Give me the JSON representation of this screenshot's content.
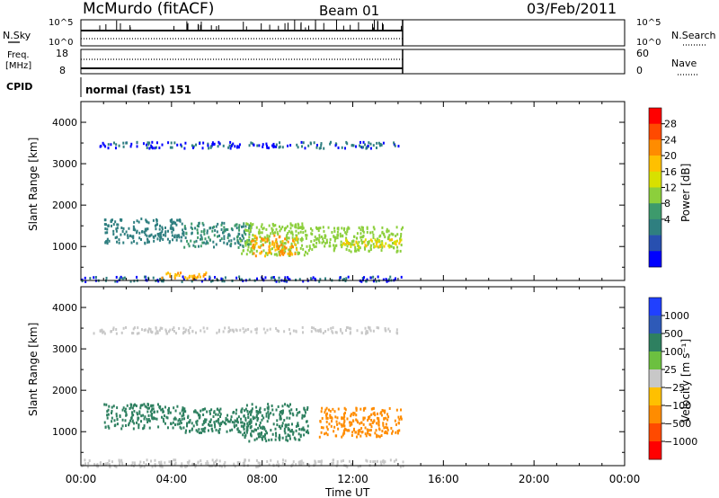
{
  "header": {
    "title": "McMurdo (fitACF)",
    "beam": "Beam 01",
    "date": "03/Feb/2011"
  },
  "nsky_panel": {
    "left_label": "N.Sky",
    "left_ticks": [
      "10^5",
      "10^0"
    ],
    "right_ticks": [
      "10^5",
      "10^0"
    ],
    "right_label": "N.Search"
  },
  "freq_panel": {
    "left_label_line1": "Freq.",
    "left_label_line2": "[MHz]",
    "left_ticks": [
      "18",
      "8"
    ],
    "right_ticks": [
      "60",
      "0"
    ],
    "right_label": "Nave"
  },
  "cpid_panel": {
    "label": "CPID",
    "value": "normal (fast) 151"
  },
  "x_axis": {
    "label": "Time UT",
    "ticks": [
      "00:00",
      "04:00",
      "08:00",
      "12:00",
      "16:00",
      "20:00",
      "00:00"
    ]
  },
  "y_axis": {
    "label": "Slant Range [km]",
    "ticks": [
      "4000",
      "3000",
      "2000",
      "1000"
    ]
  },
  "power_colorbar": {
    "label": "Power [dB]",
    "ticks": [
      "28",
      "24",
      "20",
      "16",
      "12",
      "8",
      "4"
    ],
    "colors": [
      "#ff0000",
      "#ff4a00",
      "#ff8c00",
      "#ffc000",
      "#d8e000",
      "#8ccf3c",
      "#3d9a6c",
      "#2f7f80",
      "#2850b0",
      "#0000ff"
    ]
  },
  "velocity_colorbar": {
    "label": "Velocity [m s⁻¹]",
    "ticks": [
      "1000",
      "500",
      "100",
      "25",
      "−25",
      "−100",
      "−500",
      "−1000"
    ],
    "colors": [
      "#2040ff",
      "#2e5ab8",
      "#2e8060",
      "#6cc040",
      "#c8c8c8",
      "#ffc000",
      "#ff8c00",
      "#ff4a00",
      "#ff0000"
    ]
  },
  "chart_data": [
    {
      "type": "line",
      "title": "N.Sky / N.Search",
      "x": [
        "00:00",
        "04:00",
        "08:00",
        "12:00",
        "14:15"
      ],
      "series": [
        {
          "name": "N.Sky",
          "values": [
            3,
            3,
            3,
            3,
            3
          ]
        },
        {
          "name": "N.Search",
          "values": [
            1,
            1,
            1,
            1,
            1
          ]
        }
      ],
      "ylim": [
        0,
        5
      ]
    },
    {
      "type": "line",
      "title": "Freq. / Nave",
      "x": [
        "00:00",
        "04:00",
        "08:00",
        "12:00",
        "14:15"
      ],
      "series": [
        {
          "name": "Freq.",
          "values": [
            10,
            10,
            10,
            10,
            10
          ]
        },
        {
          "name": "Nave",
          "values": [
            40,
            40,
            40,
            40,
            40
          ]
        }
      ],
      "ylim": [
        8,
        18
      ]
    },
    {
      "type": "heatmap",
      "title": "",
      "xlabel": "Time UT",
      "ylabel": "Slant Range [km]",
      "xlim": [
        0,
        24
      ],
      "ylim": [
        180,
        4500
      ],
      "colorbar": "Power [dB]",
      "data_end_hour": 14.2,
      "patches": [
        {
          "t_start": 0.0,
          "t_end": 14.2,
          "r_start": 180,
          "r_end": 300,
          "value": 4
        },
        {
          "t_start": 3.5,
          "t_end": 5.5,
          "r_start": 250,
          "r_end": 400,
          "value": 24
        },
        {
          "t_start": 1.0,
          "t_end": 4.5,
          "r_start": 1100,
          "r_end": 1700,
          "value": 6
        },
        {
          "t_start": 4.5,
          "t_end": 7.5,
          "r_start": 1000,
          "r_end": 1600,
          "value": 8
        },
        {
          "t_start": 7.0,
          "t_end": 10.0,
          "r_start": 800,
          "r_end": 1600,
          "value": 14
        },
        {
          "t_start": 7.5,
          "t_end": 9.5,
          "r_start": 800,
          "r_end": 1300,
          "value": 24
        },
        {
          "t_start": 10.0,
          "t_end": 14.2,
          "r_start": 900,
          "r_end": 1500,
          "value": 14
        },
        {
          "t_start": 11.5,
          "t_end": 14.2,
          "r_start": 1000,
          "r_end": 1200,
          "value": 20
        },
        {
          "t_start": 0.5,
          "t_end": 14.0,
          "r_start": 3400,
          "r_end": 3550,
          "value": 4
        }
      ]
    },
    {
      "type": "heatmap",
      "title": "",
      "xlabel": "Time UT",
      "ylabel": "Slant Range [km]",
      "xlim": [
        0,
        24
      ],
      "ylim": [
        180,
        4500
      ],
      "colorbar": "Velocity [m s⁻¹]",
      "data_end_hour": 14.2,
      "patches": [
        {
          "t_start": 0.0,
          "t_end": 14.2,
          "r_start": 180,
          "r_end": 350,
          "value": 0
        },
        {
          "t_start": 1.0,
          "t_end": 4.5,
          "r_start": 1100,
          "r_end": 1700,
          "value": 200
        },
        {
          "t_start": 4.5,
          "t_end": 7.5,
          "r_start": 1000,
          "r_end": 1600,
          "value": 150
        },
        {
          "t_start": 7.0,
          "t_end": 10.0,
          "r_start": 800,
          "r_end": 1700,
          "value": 150
        },
        {
          "t_start": 10.5,
          "t_end": 14.2,
          "r_start": 900,
          "r_end": 1600,
          "value": -150
        },
        {
          "t_start": 0.5,
          "t_end": 14.0,
          "r_start": 3400,
          "r_end": 3550,
          "value": 0
        }
      ]
    }
  ]
}
